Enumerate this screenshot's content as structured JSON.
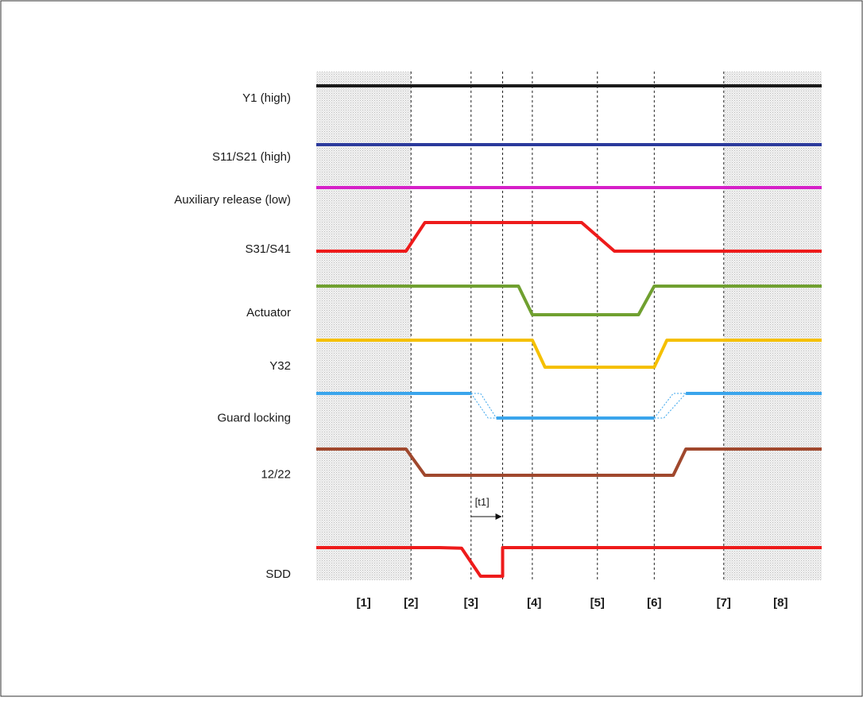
{
  "signals": [
    {
      "label": "Y1 (high)",
      "color": "#1a1a1a",
      "points": [
        [
          0,
          1
        ],
        [
          8,
          1
        ]
      ],
      "dashed_segments": []
    },
    {
      "label": "S11/S21 (high)",
      "color": "#2b3a9c",
      "points": [
        [
          0,
          1
        ],
        [
          8,
          1
        ]
      ],
      "dashed_segments": []
    },
    {
      "label": "Auxiliary release (low)",
      "color": "#d61fc8",
      "points": [
        [
          0,
          1
        ],
        [
          8,
          1
        ]
      ],
      "dashed_segments": []
    },
    {
      "label": "S31/S41",
      "color": "#ee1b1b",
      "points": [
        [
          0,
          0
        ],
        [
          1.42,
          0
        ],
        [
          1.72,
          1
        ],
        [
          4.2,
          1
        ],
        [
          4.72,
          0
        ],
        [
          8,
          0
        ]
      ],
      "dashed_segments": []
    },
    {
      "label": "Actuator",
      "color": "#70a030",
      "points": [
        [
          0,
          1
        ],
        [
          3.2,
          1
        ],
        [
          3.42,
          0
        ],
        [
          5.1,
          0
        ],
        [
          5.35,
          1
        ],
        [
          8,
          1
        ]
      ],
      "dashed_segments": []
    },
    {
      "label": "Y32",
      "color": "#f5c000",
      "points": [
        [
          0,
          1
        ],
        [
          3.42,
          1
        ],
        [
          3.62,
          0
        ],
        [
          5.35,
          0
        ],
        [
          5.55,
          1
        ],
        [
          8,
          1
        ]
      ],
      "dashed_segments": []
    },
    {
      "label": "Guard locking",
      "color": "#3aa5ec",
      "points": [
        [
          0,
          1
        ],
        [
          2.45,
          1
        ]
      ],
      "solid_segments": [
        [
          [
            2.85,
            0
          ],
          [
            5.35,
            0
          ]
        ],
        [
          [
            5.85,
            1
          ],
          [
            8,
            1
          ]
        ]
      ],
      "dashed_segments": [
        [
          [
            2.45,
            1
          ],
          [
            2.72,
            0
          ],
          [
            2.85,
            0
          ]
        ],
        [
          [
            2.45,
            1
          ],
          [
            2.6,
            1
          ],
          [
            2.85,
            0
          ]
        ],
        [
          [
            5.35,
            0
          ],
          [
            5.5,
            0
          ],
          [
            5.85,
            1
          ]
        ],
        [
          [
            5.35,
            0
          ],
          [
            5.65,
            1
          ],
          [
            5.85,
            1
          ]
        ]
      ]
    },
    {
      "label": "12/22",
      "color": "#a0482d",
      "points": [
        [
          0,
          1
        ],
        [
          1.42,
          1
        ],
        [
          1.72,
          0
        ],
        [
          5.65,
          0
        ],
        [
          5.85,
          1
        ],
        [
          8,
          1
        ]
      ],
      "dashed_segments": []
    },
    {
      "label": "SDD",
      "color": "#ee1b1b",
      "points": [
        [
          0,
          1
        ],
        [
          1.95,
          1
        ],
        [
          2.3,
          0.98
        ],
        [
          2.6,
          0
        ],
        [
          2.95,
          0
        ],
        [
          2.95,
          1
        ],
        [
          8,
          1
        ]
      ],
      "dashed_segments": []
    }
  ],
  "phases": [
    "[1]",
    "[2]",
    "[3]",
    "[4]",
    "[5]",
    "[6]",
    "[7]",
    "[8]"
  ],
  "phase_label_x": [
    0.75,
    1.5,
    2.45,
    3.45,
    4.45,
    5.35,
    6.45,
    7.35
  ],
  "dashed_lines_x": [
    1.5,
    2.45,
    2.95,
    3.42,
    4.45,
    5.35,
    6.45
  ],
  "shaded_regions_x": [
    [
      0,
      1.5
    ],
    [
      6.45,
      8
    ]
  ],
  "time_annotation": {
    "label": "[t1]",
    "from_x": 2.45,
    "to_x": 2.95
  },
  "colors": {
    "shading": "#e6e6e6",
    "grid": "#222222",
    "frame": "#333333"
  }
}
